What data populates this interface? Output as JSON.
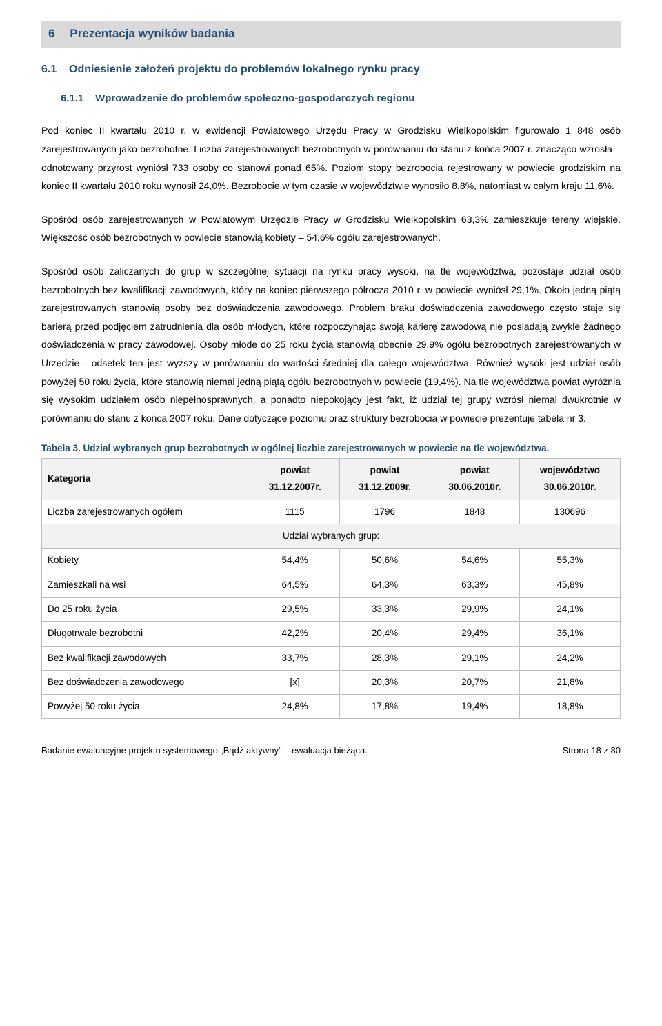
{
  "section": {
    "num": "6",
    "title": "Prezentacja wyników badania"
  },
  "sub1": {
    "num": "6.1",
    "title": "Odniesienie założeń projektu do problemów lokalnego rynku pracy"
  },
  "sub2": {
    "num": "6.1.1",
    "title": "Wprowadzenie do problemów społeczno-gospodarczych regionu"
  },
  "para1": "Pod koniec II kwartału 2010 r. w ewidencji Powiatowego Urzędu Pracy w Grodzisku Wielkopolskim figurowało 1 848 osób zarejestrowanych jako bezrobotne. Liczba zarejestrowanych bezrobotnych w porównaniu do stanu z końca 2007 r. znacząco wzrosła – odnotowany przyrost wyniósł 733 osoby co stanowi ponad 65%. Poziom stopy bezrobocia rejestrowany w powiecie grodziskim na koniec II kwartału 2010 roku wynosił 24,0%. Bezrobocie w tym czasie w województwie wynosiło 8,8%, natomiast w całym kraju 11,6%.",
  "para2": "Spośród osób zarejestrowanych w Powiatowym Urzędzie Pracy w Grodzisku Wielkopolskim 63,3% zamieszkuje tereny wiejskie. Większość osób bezrobotnych w powiecie stanowią kobiety – 54,6% ogółu zarejestrowanych.",
  "para3": "Spośród osób zaliczanych do grup w szczególnej sytuacji na rynku pracy wysoki, na tle województwa, pozostaje udział osób bezrobotnych bez kwalifikacji zawodowych, który na koniec pierwszego półrocza 2010 r. w powiecie wyniósł 29,1%. Około jedną piątą zarejestrowanych stanowią osoby bez doświadczenia zawodowego. Problem braku doświadczenia zawodowego często staje się barierą przed podjęciem zatrudnienia dla osób młodych, które rozpoczynając swoją karierę zawodową nie posiadają zwykle żadnego doświadczenia w pracy zawodowej. Osoby młode do 25 roku życia stanowią obecnie 29,9% ogółu bezrobotnych zarejestrowanych w Urzędzie - odsetek ten jest wyższy w porównaniu do wartości średniej dla całego województwa. Również wysoki jest udział osób powyżej 50 roku życia, które stanowią niemal jedną piątą ogółu bezrobotnych w powiecie (19,4%). Na tle województwa powiat wyróżnia się wysokim udziałem osób niepełnosprawnych, a ponadto niepokojący jest fakt, iż udział tej grupy wzrósł niemal dwukrotnie w porównaniu do stanu z końca 2007 roku. Dane dotyczące poziomu oraz struktury bezrobocia w powiecie prezentuje tabela nr 3.",
  "table": {
    "caption": "Tabela 3. Udział wybranych grup bezrobotnych w ogólnej liczbie zarejestrowanych w powiecie na tle województwa.",
    "headers": [
      "Kategoria",
      "powiat 31.12.2007r.",
      "powiat 31.12.2009r.",
      "powiat 30.06.2010r.",
      "województwo 30.06.2010r."
    ],
    "h0": "Kategoria",
    "h1a": "powiat",
    "h1b": "31.12.2007r.",
    "h2a": "powiat",
    "h2b": "31.12.2009r.",
    "h3a": "powiat",
    "h3b": "30.06.2010r.",
    "h4a": "województwo",
    "h4b": "30.06.2010r.",
    "subhead": "Udział wybranych grup:",
    "rows": [
      {
        "label": "Liczba zarejestrowanych ogółem",
        "c1": "1115",
        "c2": "1796",
        "c3": "1848",
        "c4": "130696"
      },
      {
        "label": "Kobiety",
        "c1": "54,4%",
        "c2": "50,6%",
        "c3": "54,6%",
        "c4": "55,3%"
      },
      {
        "label": "Zamieszkali na wsi",
        "c1": "64,5%",
        "c2": "64,3%",
        "c3": "63,3%",
        "c4": "45,8%"
      },
      {
        "label": "Do 25 roku życia",
        "c1": "29,5%",
        "c2": "33,3%",
        "c3": "29,9%",
        "c4": "24,1%"
      },
      {
        "label": "Długotrwale bezrobotni",
        "c1": "42,2%",
        "c2": "20,4%",
        "c3": "29,4%",
        "c4": "36,1%"
      },
      {
        "label": "Bez kwalifikacji zawodowych",
        "c1": "33,7%",
        "c2": "28,3%",
        "c3": "29,1%",
        "c4": "24,2%"
      },
      {
        "label": "Bez doświadczenia zawodowego",
        "c1": "[x]",
        "c2": "20,3%",
        "c3": "20,7%",
        "c4": "21,8%"
      },
      {
        "label": "Powyżej 50 roku życia",
        "c1": "24,8%",
        "c2": "17,8%",
        "c3": "19,4%",
        "c4": "18,8%"
      }
    ]
  },
  "footer": {
    "left": "Badanie ewaluacyjne projektu systemowego „Bądź aktywny\" – ewaluacja bieżąca.",
    "right": "Strona 18 z 80"
  },
  "colors": {
    "heading_bg": "#d9d9d9",
    "heading_text": "#1f4e79",
    "table_border": "#bfbfbf",
    "table_header_bg": "#f2f2f2"
  }
}
